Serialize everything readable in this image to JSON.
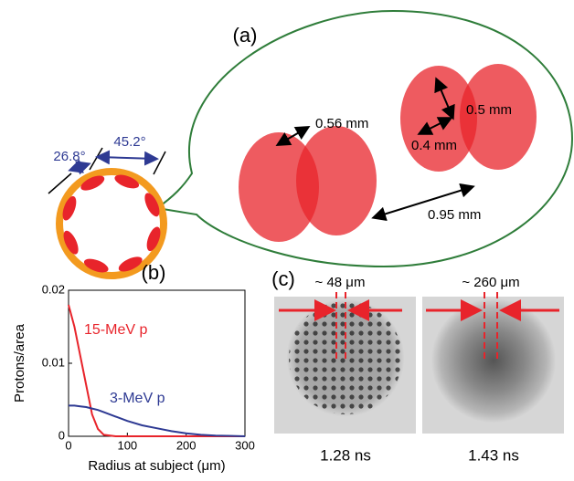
{
  "panel_a": {
    "label": "(a)",
    "angle_small": "26.8°",
    "angle_large": "45.2°",
    "dim_pair": "0.56 mm",
    "dim_height": "0.5 mm",
    "dim_width": "0.4 mm",
    "dim_separation": "0.95 mm"
  },
  "chart_data": {
    "type": "line",
    "label": "(b)",
    "x_label": "Radius at subject (μm)",
    "y_label": "Protons/area",
    "x": [
      0,
      10,
      20,
      30,
      40,
      50,
      60,
      80,
      100,
      125,
      150,
      175,
      200,
      225,
      250,
      300
    ],
    "series": [
      {
        "name": "15-MeV p",
        "color": "#e8242b",
        "values": [
          0.018,
          0.015,
          0.011,
          0.007,
          0.003,
          0.001,
          0.0002,
          0,
          0,
          0,
          0,
          0,
          0,
          0,
          0,
          0
        ]
      },
      {
        "name": "3-MeV p",
        "color": "#2e3a93",
        "values": [
          0.0042,
          0.0042,
          0.0041,
          0.004,
          0.0038,
          0.0036,
          0.0033,
          0.0027,
          0.0021,
          0.0015,
          0.0011,
          0.0007,
          0.0004,
          0.0002,
          0.0001,
          0
        ]
      }
    ],
    "xlim": [
      0,
      300
    ],
    "ylim": [
      0,
      0.02
    ],
    "xticks": [
      0,
      100,
      200,
      300
    ],
    "yticks": [
      0,
      0.01,
      0.02
    ]
  },
  "panel_c": {
    "label": "(c)",
    "spot_left": "~ 48 μm",
    "spot_right": "~ 260 μm",
    "time_left": "1.28 ns",
    "time_right": "1.43 ns"
  }
}
